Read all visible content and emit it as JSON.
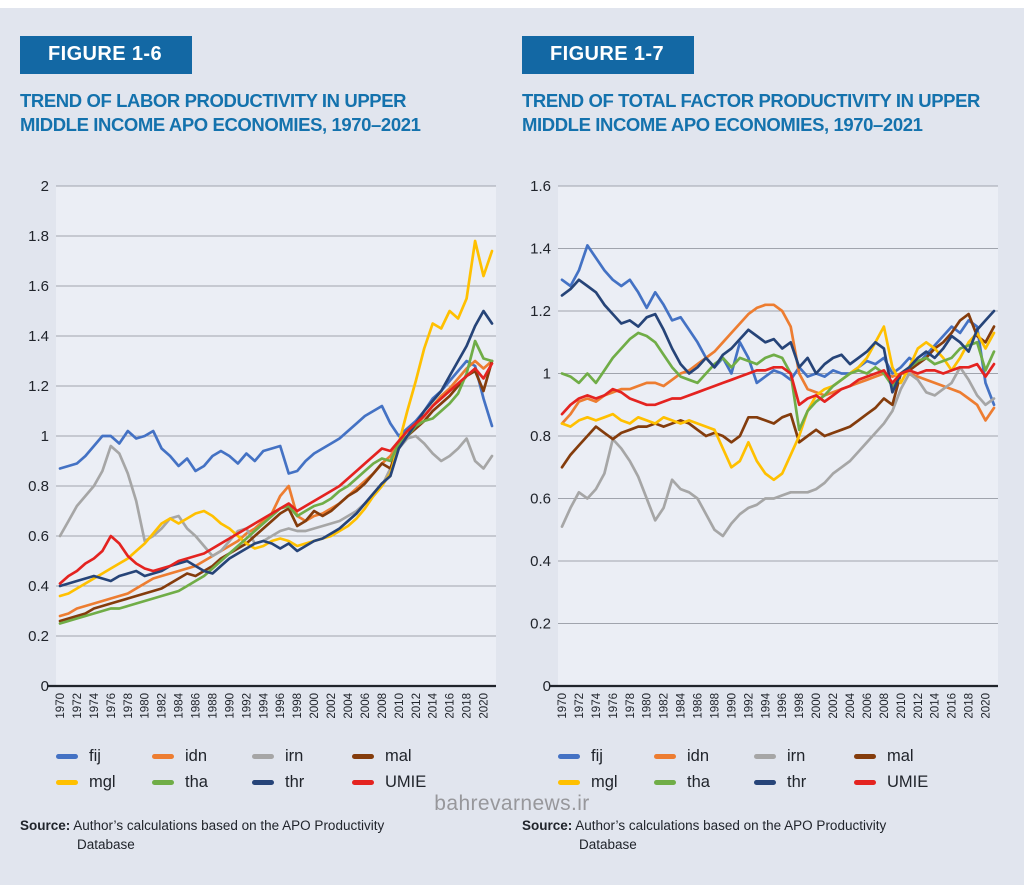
{
  "page": {
    "watermark": "bahrevarnews.ir"
  },
  "figures": [
    {
      "badge": "FIGURE 1-6",
      "title_lines": [
        "TREND OF LABOR PRODUCTIVITY IN UPPER",
        "MIDDLE INCOME APO ECONOMIES, 1970–2021"
      ],
      "source": {
        "label": "Source:",
        "line1": "Author’s calculations based on the APO Productivity",
        "line2": "Database"
      }
    },
    {
      "badge": "FIGURE 1-7",
      "title_lines": [
        "TREND OF TOTAL FACTOR PRODUCTIVITY IN UPPER",
        "MIDDLE INCOME APO ECONOMIES, 1970–2021"
      ],
      "source": {
        "label": "Source:",
        "line1": "Author’s calculations based on the APO Productivity",
        "line2": "Database"
      }
    }
  ],
  "chart_data": [
    {
      "type": "line",
      "title": "Trend of labor productivity in upper middle income APO economies, 1970–2021",
      "xlabel": "",
      "ylabel": "",
      "ylim": [
        0,
        2
      ],
      "y_tick_step": 0.2,
      "x_tick_step": 2,
      "grid": true,
      "legend_position": "bottom",
      "years": [
        1970,
        1971,
        1972,
        1973,
        1974,
        1975,
        1976,
        1977,
        1978,
        1979,
        1980,
        1981,
        1982,
        1983,
        1984,
        1985,
        1986,
        1987,
        1988,
        1989,
        1990,
        1991,
        1992,
        1993,
        1994,
        1995,
        1996,
        1997,
        1998,
        1999,
        2000,
        2001,
        2002,
        2003,
        2004,
        2005,
        2006,
        2007,
        2008,
        2009,
        2010,
        2011,
        2012,
        2013,
        2014,
        2015,
        2016,
        2017,
        2018,
        2019,
        2020,
        2021
      ],
      "series": [
        {
          "name": "fij",
          "color": "#4472C4",
          "values": [
            0.87,
            0.88,
            0.89,
            0.92,
            0.96,
            1.0,
            1.0,
            0.97,
            1.02,
            0.99,
            1.0,
            1.02,
            0.95,
            0.92,
            0.88,
            0.91,
            0.86,
            0.88,
            0.92,
            0.94,
            0.92,
            0.89,
            0.93,
            0.9,
            0.94,
            0.95,
            0.96,
            0.85,
            0.86,
            0.9,
            0.93,
            0.95,
            0.97,
            0.99,
            1.02,
            1.05,
            1.08,
            1.1,
            1.12,
            1.05,
            1.0,
            1.03,
            1.06,
            1.1,
            1.15,
            1.18,
            1.22,
            1.26,
            1.3,
            1.28,
            1.15,
            1.04
          ]
        },
        {
          "name": "idn",
          "color": "#ED7D31",
          "values": [
            0.28,
            0.29,
            0.31,
            0.32,
            0.33,
            0.34,
            0.35,
            0.36,
            0.37,
            0.39,
            0.41,
            0.43,
            0.44,
            0.45,
            0.46,
            0.47,
            0.48,
            0.5,
            0.52,
            0.54,
            0.56,
            0.58,
            0.61,
            0.63,
            0.66,
            0.69,
            0.76,
            0.8,
            0.68,
            0.66,
            0.68,
            0.69,
            0.71,
            0.73,
            0.76,
            0.79,
            0.82,
            0.85,
            0.89,
            0.92,
            0.97,
            1.0,
            1.04,
            1.08,
            1.12,
            1.16,
            1.19,
            1.23,
            1.27,
            1.3,
            1.27,
            1.3
          ]
        },
        {
          "name": "irn",
          "color": "#A6A6A6",
          "values": [
            0.6,
            0.66,
            0.72,
            0.76,
            0.8,
            0.86,
            0.96,
            0.93,
            0.85,
            0.74,
            0.58,
            0.6,
            0.63,
            0.67,
            0.68,
            0.63,
            0.6,
            0.56,
            0.52,
            0.54,
            0.58,
            0.62,
            0.63,
            0.57,
            0.58,
            0.6,
            0.62,
            0.63,
            0.62,
            0.62,
            0.63,
            0.64,
            0.65,
            0.66,
            0.68,
            0.7,
            0.73,
            0.76,
            0.8,
            0.87,
            0.95,
            0.99,
            1.0,
            0.97,
            0.93,
            0.9,
            0.92,
            0.95,
            0.99,
            0.9,
            0.87,
            0.92
          ]
        },
        {
          "name": "mal",
          "color": "#843C0C",
          "values": [
            0.26,
            0.27,
            0.28,
            0.29,
            0.31,
            0.32,
            0.33,
            0.34,
            0.35,
            0.36,
            0.37,
            0.38,
            0.39,
            0.41,
            0.43,
            0.45,
            0.44,
            0.46,
            0.48,
            0.51,
            0.53,
            0.55,
            0.57,
            0.6,
            0.63,
            0.66,
            0.69,
            0.71,
            0.64,
            0.66,
            0.7,
            0.68,
            0.7,
            0.73,
            0.76,
            0.78,
            0.81,
            0.85,
            0.89,
            0.87,
            0.97,
            1.0,
            1.03,
            1.06,
            1.1,
            1.13,
            1.16,
            1.2,
            1.24,
            1.26,
            1.18,
            1.3
          ]
        },
        {
          "name": "mgl",
          "color": "#FFC000",
          "values": [
            0.36,
            0.37,
            0.39,
            0.41,
            0.43,
            0.45,
            0.47,
            0.49,
            0.51,
            0.54,
            0.57,
            0.61,
            0.65,
            0.67,
            0.65,
            0.67,
            0.69,
            0.7,
            0.68,
            0.65,
            0.63,
            0.6,
            0.57,
            0.55,
            0.56,
            0.58,
            0.59,
            0.58,
            0.56,
            0.57,
            0.58,
            0.59,
            0.6,
            0.62,
            0.64,
            0.67,
            0.71,
            0.76,
            0.8,
            0.85,
            0.97,
            1.1,
            1.22,
            1.35,
            1.45,
            1.43,
            1.5,
            1.47,
            1.55,
            1.78,
            1.64,
            1.74
          ]
        },
        {
          "name": "tha",
          "color": "#70AD47",
          "values": [
            0.25,
            0.26,
            0.27,
            0.28,
            0.29,
            0.3,
            0.31,
            0.31,
            0.32,
            0.33,
            0.34,
            0.35,
            0.36,
            0.37,
            0.38,
            0.4,
            0.42,
            0.44,
            0.47,
            0.5,
            0.53,
            0.56,
            0.59,
            0.62,
            0.65,
            0.68,
            0.71,
            0.72,
            0.68,
            0.7,
            0.72,
            0.73,
            0.75,
            0.78,
            0.8,
            0.83,
            0.86,
            0.89,
            0.91,
            0.9,
            0.97,
            1.0,
            1.04,
            1.06,
            1.07,
            1.1,
            1.13,
            1.17,
            1.25,
            1.38,
            1.31,
            1.3
          ]
        },
        {
          "name": "thr",
          "color": "#264478",
          "values": [
            0.4,
            0.41,
            0.42,
            0.43,
            0.44,
            0.43,
            0.42,
            0.44,
            0.45,
            0.46,
            0.44,
            0.45,
            0.46,
            0.48,
            0.49,
            0.5,
            0.48,
            0.46,
            0.45,
            0.48,
            0.51,
            0.53,
            0.55,
            0.57,
            0.58,
            0.57,
            0.55,
            0.57,
            0.54,
            0.56,
            0.58,
            0.59,
            0.61,
            0.63,
            0.66,
            0.69,
            0.73,
            0.77,
            0.81,
            0.84,
            0.95,
            1.0,
            1.05,
            1.1,
            1.14,
            1.18,
            1.24,
            1.3,
            1.36,
            1.44,
            1.5,
            1.45
          ]
        },
        {
          "name": "UMIE",
          "color": "#E42320",
          "values": [
            0.41,
            0.44,
            0.46,
            0.49,
            0.51,
            0.54,
            0.6,
            0.57,
            0.52,
            0.49,
            0.47,
            0.46,
            0.47,
            0.48,
            0.5,
            0.51,
            0.52,
            0.53,
            0.55,
            0.57,
            0.59,
            0.61,
            0.63,
            0.65,
            0.67,
            0.69,
            0.71,
            0.73,
            0.7,
            0.72,
            0.74,
            0.76,
            0.78,
            0.8,
            0.83,
            0.86,
            0.89,
            0.92,
            0.95,
            0.94,
            0.98,
            1.02,
            1.05,
            1.08,
            1.12,
            1.15,
            1.18,
            1.21,
            1.24,
            1.27,
            1.23,
            1.29
          ]
        }
      ]
    },
    {
      "type": "line",
      "title": "Trend of total factor productivity in upper middle income APO economies, 1970–2021",
      "xlabel": "",
      "ylabel": "",
      "ylim": [
        0,
        1.6
      ],
      "y_tick_step": 0.2,
      "x_tick_step": 2,
      "grid": true,
      "legend_position": "bottom",
      "years": [
        1970,
        1971,
        1972,
        1973,
        1974,
        1975,
        1976,
        1977,
        1978,
        1979,
        1980,
        1981,
        1982,
        1983,
        1984,
        1985,
        1986,
        1987,
        1988,
        1989,
        1990,
        1991,
        1992,
        1993,
        1994,
        1995,
        1996,
        1997,
        1998,
        1999,
        2000,
        2001,
        2002,
        2003,
        2004,
        2005,
        2006,
        2007,
        2008,
        2009,
        2010,
        2011,
        2012,
        2013,
        2014,
        2015,
        2016,
        2017,
        2018,
        2019,
        2020,
        2021
      ],
      "series": [
        {
          "name": "fij",
          "color": "#4472C4",
          "values": [
            1.3,
            1.28,
            1.33,
            1.41,
            1.37,
            1.33,
            1.3,
            1.28,
            1.3,
            1.26,
            1.21,
            1.26,
            1.22,
            1.17,
            1.18,
            1.14,
            1.1,
            1.05,
            1.02,
            1.05,
            1.0,
            1.1,
            1.05,
            0.97,
            0.99,
            1.01,
            1.0,
            0.98,
            1.02,
            0.99,
            1.0,
            0.99,
            1.01,
            1.0,
            1.0,
            1.02,
            1.04,
            1.03,
            1.05,
            1.0,
            1.02,
            1.05,
            1.03,
            1.06,
            1.09,
            1.12,
            1.15,
            1.13,
            1.17,
            1.15,
            0.97,
            0.9
          ]
        },
        {
          "name": "idn",
          "color": "#ED7D31",
          "values": [
            0.84,
            0.87,
            0.91,
            0.92,
            0.91,
            0.93,
            0.94,
            0.95,
            0.95,
            0.96,
            0.97,
            0.97,
            0.96,
            0.98,
            1.0,
            1.01,
            1.03,
            1.05,
            1.07,
            1.1,
            1.13,
            1.16,
            1.19,
            1.21,
            1.22,
            1.22,
            1.2,
            1.15,
            1.0,
            0.95,
            0.94,
            0.93,
            0.94,
            0.95,
            0.96,
            0.97,
            0.98,
            0.99,
            1.0,
            0.99,
            1.0,
            1.0,
            0.99,
            0.98,
            0.97,
            0.96,
            0.95,
            0.94,
            0.92,
            0.9,
            0.85,
            0.89
          ]
        },
        {
          "name": "irn",
          "color": "#A6A6A6",
          "values": [
            0.51,
            0.57,
            0.62,
            0.6,
            0.63,
            0.68,
            0.79,
            0.76,
            0.72,
            0.67,
            0.6,
            0.53,
            0.57,
            0.66,
            0.63,
            0.62,
            0.6,
            0.55,
            0.5,
            0.48,
            0.52,
            0.55,
            0.57,
            0.58,
            0.6,
            0.6,
            0.61,
            0.62,
            0.62,
            0.62,
            0.63,
            0.65,
            0.68,
            0.7,
            0.72,
            0.75,
            0.78,
            0.81,
            0.84,
            0.88,
            0.95,
            1.0,
            0.98,
            0.94,
            0.93,
            0.95,
            0.97,
            1.02,
            0.98,
            0.93,
            0.9,
            0.92
          ]
        },
        {
          "name": "mal",
          "color": "#843C0C",
          "values": [
            0.7,
            0.74,
            0.77,
            0.8,
            0.83,
            0.81,
            0.79,
            0.81,
            0.82,
            0.83,
            0.83,
            0.84,
            0.83,
            0.84,
            0.85,
            0.84,
            0.82,
            0.8,
            0.81,
            0.8,
            0.78,
            0.8,
            0.86,
            0.86,
            0.85,
            0.84,
            0.86,
            0.87,
            0.78,
            0.8,
            0.82,
            0.8,
            0.81,
            0.82,
            0.83,
            0.85,
            0.87,
            0.89,
            0.92,
            0.9,
            1.0,
            1.01,
            1.03,
            1.05,
            1.08,
            1.1,
            1.13,
            1.17,
            1.19,
            1.12,
            1.1,
            1.15
          ]
        },
        {
          "name": "mgl",
          "color": "#FFC000",
          "values": [
            0.84,
            0.83,
            0.85,
            0.86,
            0.85,
            0.86,
            0.87,
            0.85,
            0.84,
            0.86,
            0.85,
            0.84,
            0.86,
            0.85,
            0.84,
            0.85,
            0.84,
            0.83,
            0.82,
            0.76,
            0.7,
            0.72,
            0.78,
            0.72,
            0.68,
            0.66,
            0.68,
            0.74,
            0.8,
            0.88,
            0.93,
            0.95,
            0.96,
            0.98,
            1.0,
            1.02,
            1.05,
            1.1,
            1.15,
            1.02,
            0.97,
            1.02,
            1.08,
            1.1,
            1.08,
            1.05,
            1.01,
            1.05,
            1.1,
            1.13,
            1.08,
            1.13
          ]
        },
        {
          "name": "tha",
          "color": "#70AD47",
          "values": [
            1.0,
            0.99,
            0.97,
            1.0,
            0.97,
            1.01,
            1.05,
            1.08,
            1.11,
            1.13,
            1.12,
            1.1,
            1.06,
            1.02,
            0.99,
            0.98,
            0.97,
            1.0,
            1.03,
            1.05,
            1.02,
            1.05,
            1.04,
            1.03,
            1.05,
            1.06,
            1.05,
            1.0,
            0.82,
            0.88,
            0.91,
            0.93,
            0.96,
            0.98,
            1.0,
            1.01,
            1.0,
            1.02,
            1.0,
            0.96,
            1.0,
            1.02,
            1.04,
            1.05,
            1.03,
            1.04,
            1.05,
            1.08,
            1.09,
            1.1,
            1.01,
            1.07
          ]
        },
        {
          "name": "thr",
          "color": "#264478",
          "values": [
            1.25,
            1.27,
            1.3,
            1.28,
            1.26,
            1.22,
            1.19,
            1.16,
            1.17,
            1.15,
            1.18,
            1.19,
            1.14,
            1.08,
            1.03,
            1.0,
            1.02,
            1.05,
            1.02,
            1.06,
            1.08,
            1.11,
            1.14,
            1.12,
            1.1,
            1.11,
            1.08,
            1.1,
            1.02,
            1.05,
            1.0,
            1.03,
            1.05,
            1.06,
            1.03,
            1.05,
            1.07,
            1.1,
            1.08,
            0.94,
            1.0,
            1.02,
            1.05,
            1.07,
            1.05,
            1.08,
            1.12,
            1.1,
            1.07,
            1.14,
            1.17,
            1.2
          ]
        },
        {
          "name": "UMIE",
          "color": "#E42320",
          "values": [
            0.87,
            0.9,
            0.92,
            0.93,
            0.92,
            0.93,
            0.95,
            0.94,
            0.92,
            0.91,
            0.9,
            0.9,
            0.91,
            0.92,
            0.92,
            0.93,
            0.94,
            0.95,
            0.96,
            0.97,
            0.98,
            0.99,
            1.0,
            1.01,
            1.01,
            1.02,
            1.02,
            1.0,
            0.9,
            0.92,
            0.93,
            0.91,
            0.93,
            0.95,
            0.96,
            0.98,
            0.99,
            1.0,
            1.01,
            0.97,
            1.0,
            1.01,
            1.0,
            1.01,
            1.01,
            1.0,
            1.01,
            1.02,
            1.02,
            1.03,
            0.99,
            1.03
          ]
        }
      ]
    }
  ]
}
